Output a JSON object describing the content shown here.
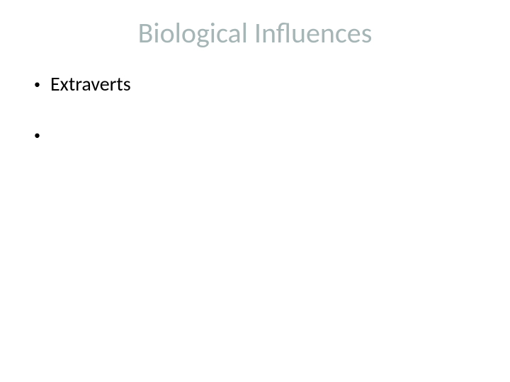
{
  "slide": {
    "title": "Biological Influences",
    "title_color": "#a6b5b5",
    "title_fontsize": 40,
    "background_color": "#ffffff",
    "bullets": [
      {
        "marker": "•",
        "text": "Extraverts"
      },
      {
        "marker": "•",
        "text": ""
      }
    ],
    "bullet_fontsize": 28,
    "bullet_color": "#000000",
    "bullet_marker_color": "#000000"
  }
}
